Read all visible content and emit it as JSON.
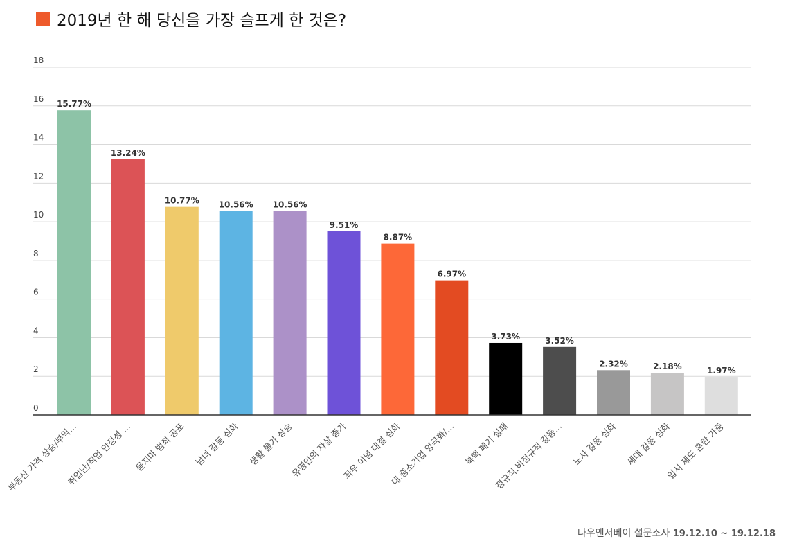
{
  "chart_data": {
    "type": "bar",
    "title": "2019년 한 해 당신을 가장 슬프게 한 것은?",
    "title_marker_color": "#EE5A2B",
    "ylim": [
      0,
      18
    ],
    "yticks": [
      0,
      2,
      4,
      6,
      8,
      10,
      12,
      14,
      16,
      18
    ],
    "grid": true,
    "categories": [
      "부동산 가격 상승/부익...",
      "취업난/직업 안정성 ...",
      "묻지마 범죄 공포",
      "남녀 갈등 심화",
      "생활 물가 상승",
      "유명인의 자살 증가",
      "좌우 이념 대결 심화",
      "대.중소기업 양극화/...",
      "북핵 폐기 실패",
      "정규직.비정규직 갈등...",
      "노사 갈등 심화",
      "세대 갈등 심화",
      "입시 제도 혼란 가중"
    ],
    "values": [
      15.77,
      13.24,
      10.77,
      10.56,
      10.56,
      9.51,
      8.87,
      6.97,
      3.73,
      3.52,
      2.32,
      2.18,
      1.97
    ],
    "data_labels": [
      "15.77%",
      "13.24%",
      "10.77%",
      "10.56%",
      "10.56%",
      "9.51%",
      "8.87%",
      "6.97%",
      "3.73%",
      "3.52%",
      "2.32%",
      "2.18%",
      "1.97%"
    ],
    "colors": [
      "#8DC3A7",
      "#DC5356",
      "#EFCA6B",
      "#5DB4E3",
      "#AC91C8",
      "#6E52D8",
      "#FD6838",
      "#E34B22",
      "#000000",
      "#4D4D4D",
      "#999999",
      "#C6C5C5",
      "#DEDEDE"
    ]
  },
  "footer": {
    "source": "나우앤서베이 설문조사",
    "dates": "19.12.10 ~ 19.12.18"
  }
}
